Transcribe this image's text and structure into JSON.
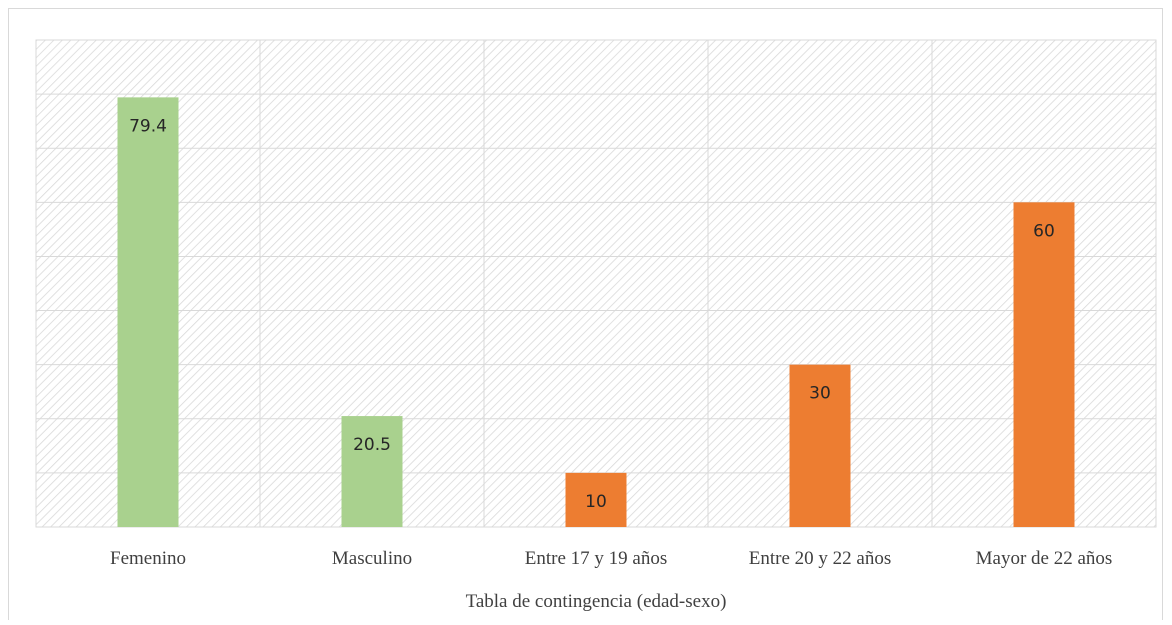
{
  "chart_data": {
    "type": "bar",
    "categories": [
      "Femenino",
      "Masculino",
      "Entre 17 y 19 años",
      "Entre 20 y 22 años",
      "Mayor de 22 años"
    ],
    "values": [
      79.4,
      20.5,
      10,
      30,
      60
    ],
    "data_labels": [
      "79.4",
      "20.5",
      "10",
      "30",
      "60"
    ],
    "bar_colors": [
      "#a9d18e",
      "#a9d18e",
      "#ed7d31",
      "#ed7d31",
      "#ed7d31"
    ],
    "title": "",
    "xlabel": "Tabla de contingencia (edad-sexo)",
    "ylabel": "",
    "ylim": [
      0,
      90
    ],
    "grid": true,
    "plot_background": "diagonal hatch",
    "legend": "none"
  }
}
